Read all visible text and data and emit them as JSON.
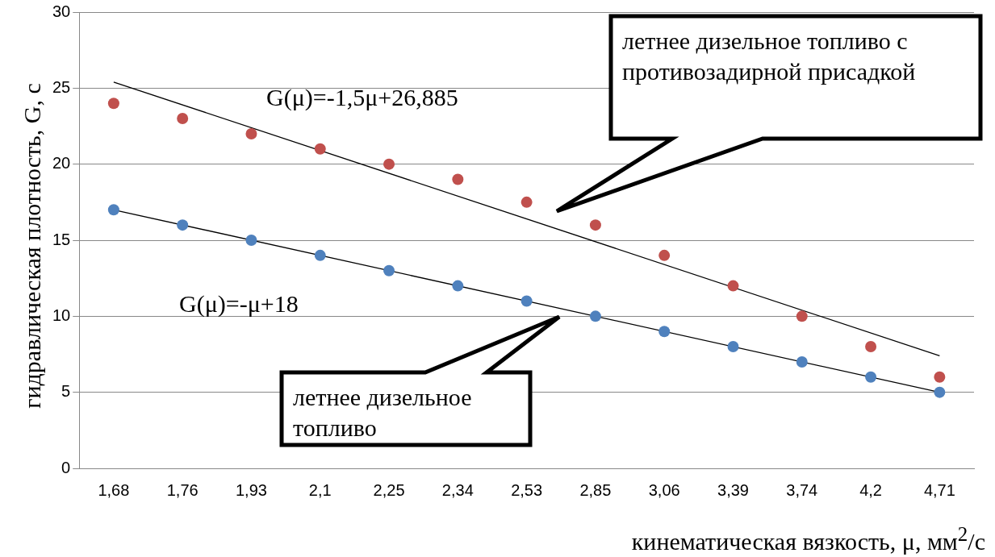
{
  "chart_data": {
    "type": "scatter",
    "xlabel": "кинематическая вязкость, μ, мм$^{2}$/с",
    "ylabel": "гидравлическая плотность, G, с",
    "categories": [
      "1,68",
      "1,76",
      "1,93",
      "2,1",
      "2,25",
      "2,34",
      "2,53",
      "2,85",
      "3,06",
      "3,39",
      "3,74",
      "4,2",
      "4,71"
    ],
    "series": [
      {
        "marker": "circle",
        "color": "#4f81bd",
        "values": [
          17,
          16,
          15,
          14,
          13,
          12,
          11,
          10,
          9,
          8,
          7,
          6,
          5
        ]
      },
      {
        "marker": "circle",
        "color": "#c0504d",
        "values": [
          24,
          23,
          22,
          21,
          20,
          19,
          17.5,
          16,
          14,
          12,
          10,
          8,
          6
        ]
      },
      {
        "type": "line",
        "marker": "none",
        "color": "#000000",
        "x": [
          "1,68",
          "4,71"
        ],
        "values": [
          17,
          5
        ]
      },
      {
        "type": "line",
        "marker": "none",
        "color": "#000000",
        "x": [
          "1,68",
          "4,71"
        ],
        "values": [
          25.4,
          7.4
        ]
      }
    ],
    "ylim": [
      0,
      30
    ],
    "yticks": [
      0,
      5,
      10,
      15,
      20,
      25,
      30
    ],
    "grid": "y",
    "legend": false,
    "annotations": [
      "G(μ)=-1,5μ+26,885",
      "G(μ)=-μ+18",
      "летнее дизельное топливо с противозадирной присадкой",
      "летнее дизельное топливо"
    ]
  }
}
